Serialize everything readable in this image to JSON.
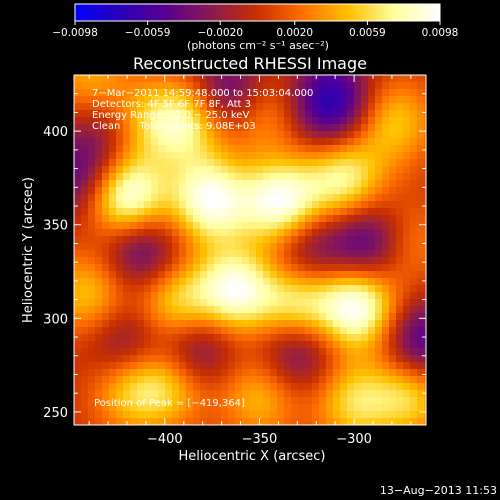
{
  "chart_data": {
    "type": "heatmap",
    "title": "Reconstructed RHESSI Image",
    "xlabel": "Heliocentric X (arcsec)",
    "ylabel": "Heliocentric Y (arcsec)",
    "xlim": [
      -448,
      -262
    ],
    "ylim": [
      243,
      430
    ],
    "x_ticks": [
      -400,
      -350,
      -300
    ],
    "x_tick_labels": [
      "−400",
      "−350",
      "−300"
    ],
    "y_ticks": [
      250,
      300,
      350,
      400
    ],
    "y_tick_labels": [
      "250",
      "300",
      "350",
      "400"
    ],
    "colorbar": {
      "range": [
        -0.0098,
        0.0098
      ],
      "ticks": [
        -0.0098,
        -0.0059,
        -0.002,
        0.002,
        0.0059,
        0.0098
      ],
      "tick_labels": [
        "−0.0098",
        "−0.0059",
        "−0.0020",
        "0.0020",
        "0.0059",
        "0.0098"
      ],
      "units_label": "(photons cm⁻² s⁻¹ asec⁻²)",
      "colormap": [
        "#0000ff",
        "#2a00b8",
        "#5b008f",
        "#8a1a50",
        "#c83000",
        "#ff7000",
        "#ffc000",
        "#ffffa0",
        "#ffffff"
      ]
    },
    "annotations": [
      "7−Mar−2011 14:59:48.000 to 15:03:04.000",
      "Detectors: 4F 5F 6F 7F 8F, Att 3",
      "Energy Range: 12.0 − 25.0 keV",
      "Clean      Total counts: 9.08E+03"
    ],
    "peak_label": "Position of Peak = [−419,364]",
    "grid": false,
    "peaks": [
      {
        "x": -420,
        "y": 364,
        "value": 0.0098
      },
      {
        "x": -338,
        "y": 361,
        "value": 0.0094
      },
      {
        "x": -376,
        "y": 363,
        "value": 0.0088
      },
      {
        "x": -389,
        "y": 405,
        "value": 0.007
      },
      {
        "x": -416,
        "y": 403,
        "value": 0.006
      },
      {
        "x": -305,
        "y": 374,
        "value": 0.007
      },
      {
        "x": -350,
        "y": 410,
        "value": 0.0045
      },
      {
        "x": -279,
        "y": 405,
        "value": 0.005
      },
      {
        "x": -363,
        "y": 315,
        "value": 0.0085
      },
      {
        "x": -298,
        "y": 306,
        "value": 0.0093
      },
      {
        "x": -394,
        "y": 306,
        "value": 0.0065
      },
      {
        "x": -330,
        "y": 306,
        "value": 0.0075
      },
      {
        "x": -440,
        "y": 313,
        "value": 0.005
      },
      {
        "x": -418,
        "y": 262,
        "value": 0.005
      },
      {
        "x": -397,
        "y": 265,
        "value": 0.005
      },
      {
        "x": -350,
        "y": 258,
        "value": 0.0045
      },
      {
        "x": -300,
        "y": 255,
        "value": 0.0055
      },
      {
        "x": -270,
        "y": 260,
        "value": 0.006
      },
      {
        "x": -275,
        "y": 340,
        "value": 0.0045
      },
      {
        "x": -440,
        "y": 430,
        "value": 0.004
      }
    ],
    "troughs": [
      {
        "x": -365,
        "y": 419,
        "value": -0.006
      },
      {
        "x": -312,
        "y": 415,
        "value": -0.0075
      },
      {
        "x": -426,
        "y": 400,
        "value": -0.005
      },
      {
        "x": -413,
        "y": 338,
        "value": -0.0055
      },
      {
        "x": -290,
        "y": 340,
        "value": -0.007
      },
      {
        "x": -325,
        "y": 338,
        "value": -0.0045
      },
      {
        "x": -385,
        "y": 285,
        "value": -0.0055
      },
      {
        "x": -330,
        "y": 285,
        "value": -0.0055
      },
      {
        "x": -265,
        "y": 286,
        "value": -0.006
      },
      {
        "x": -420,
        "y": 286,
        "value": -0.004
      },
      {
        "x": -445,
        "y": 375,
        "value": -0.0045
      }
    ]
  },
  "footer": {
    "date": "13−Aug−2013 11:53"
  }
}
